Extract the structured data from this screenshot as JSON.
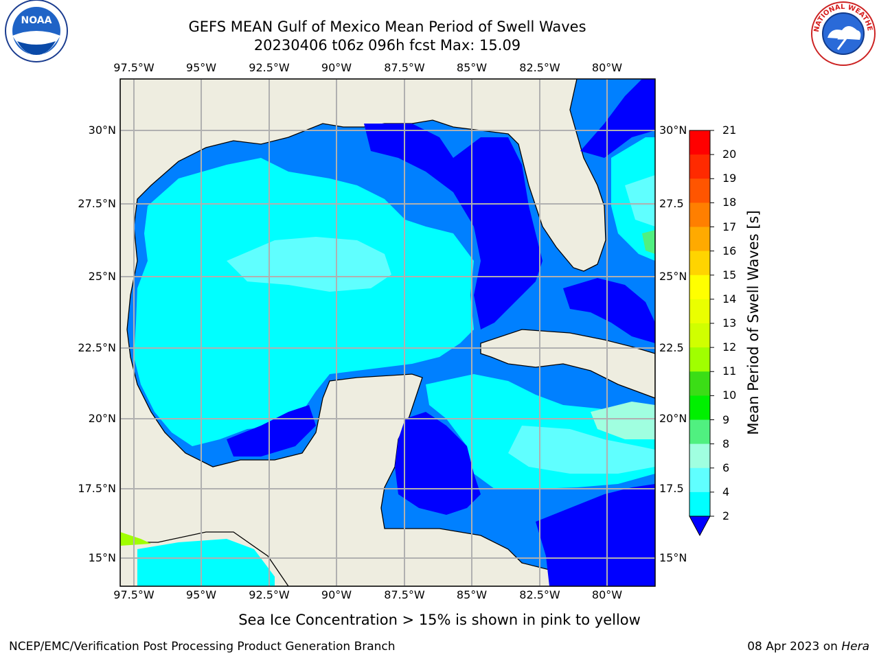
{
  "header": {
    "title_line1": "GEFS MEAN Gulf of Mexico Mean Period of Swell Waves",
    "title_line2": "20230406 t06z 096h fcst   Max: 15.09"
  },
  "logos": {
    "left": "NOAA",
    "right": "NATIONAL WEATHER SERVICE"
  },
  "map": {
    "lon_labels": [
      "97.5°W",
      "95°W",
      "92.5°W",
      "90°W",
      "87.5°W",
      "85°W",
      "82.5°W",
      "80°W"
    ],
    "lat_labels_left": [
      "30°N",
      "27.5°N",
      "25°N",
      "22.5°N",
      "20°N",
      "17.5°N",
      "15°N"
    ],
    "lat_labels_right": [
      "30°N",
      "27.5",
      "25°N",
      "22.5",
      "20°N",
      "17.5",
      "15°N"
    ],
    "colors": {
      "land": "#eeede0",
      "grid": "#b0b0b0",
      "coast": "#000000"
    }
  },
  "colorbar": {
    "label": "Mean Period of Swell Waves [s]",
    "ticks": [
      "21",
      "20",
      "19",
      "18",
      "17",
      "16",
      "15",
      "14",
      "13",
      "12",
      "11",
      "10",
      "9",
      "8",
      "6",
      "4",
      "2"
    ],
    "colors": [
      "#ff0000",
      "#ff2a00",
      "#ff5500",
      "#ff7f00",
      "#ffaa00",
      "#ffd400",
      "#ffff00",
      "#eaff00",
      "#d0ff00",
      "#a0ff00",
      "#3bdd16",
      "#00f000",
      "#50f080",
      "#a0ffe0",
      "#60ffff",
      "#00ffff",
      "#0080ff",
      "#0000ff"
    ]
  },
  "caption": "Sea Ice Concentration > 15% is shown in pink to yellow",
  "footer": {
    "left": "NCEP/EMC/Verification Post Processing Product Generation Branch",
    "date": "08 Apr 2023 on ",
    "host": "Hera"
  }
}
